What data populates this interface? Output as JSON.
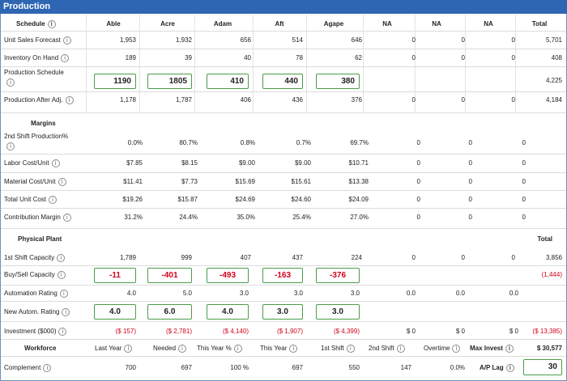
{
  "title": "Production",
  "columns": [
    "Schedule",
    "Able",
    "Acre",
    "Adam",
    "Aft",
    "Agape",
    "NA",
    "NA",
    "NA",
    "Total"
  ],
  "schedule": {
    "sales_forecast": {
      "label": "Unit Sales Forecast",
      "values": [
        "1,953",
        "1,932",
        "656",
        "514",
        "646",
        "0",
        "0",
        "0",
        "5,701"
      ]
    },
    "inventory": {
      "label": "Inventory On Hand",
      "values": [
        "189",
        "39",
        "40",
        "78",
        "62",
        "0",
        "0",
        "0",
        "408"
      ]
    },
    "production_schedule": {
      "label": "Production Schedule",
      "inputs": [
        "1190",
        "1805",
        "410",
        "440",
        "380"
      ],
      "total": "4,225"
    },
    "production_after_adj": {
      "label": "Production After Adj.",
      "values": [
        "1,178",
        "1,787",
        "406",
        "436",
        "376",
        "0",
        "0",
        "0",
        "4,184"
      ]
    }
  },
  "margins": {
    "heading": "Margins",
    "second_shift": {
      "label": "2nd Shift Production%",
      "values": [
        "0.0%",
        "80.7%",
        "0.8%",
        "0.7%",
        "69.7%",
        "0",
        "0",
        "0"
      ]
    },
    "labor_cost": {
      "label": "Labor Cost/Unit",
      "values": [
        "$7.85",
        "$8.15",
        "$9.00",
        "$9.00",
        "$10.71",
        "0",
        "0",
        "0"
      ]
    },
    "material_cost": {
      "label": "Material Cost/Unit",
      "values": [
        "$11.41",
        "$7.73",
        "$15.69",
        "$15.61",
        "$13.38",
        "0",
        "0",
        "0"
      ]
    },
    "total_unit_cost": {
      "label": "Total Unit Cost",
      "values": [
        "$19.26",
        "$15.87",
        "$24.69",
        "$24.60",
        "$24.09",
        "0",
        "0",
        "0"
      ]
    },
    "contribution_margin": {
      "label": "Contribution Margin",
      "values": [
        "31.2%",
        "24.4%",
        "35.0%",
        "25.4%",
        "27.0%",
        "0",
        "0",
        "0"
      ]
    }
  },
  "plant": {
    "heading": "Physical Plant",
    "total_heading": "Total",
    "first_shift": {
      "label": "1st Shift Capacity",
      "values": [
        "1,789",
        "999",
        "407",
        "437",
        "224",
        "0",
        "0",
        "0",
        "3,856"
      ]
    },
    "buy_sell": {
      "label": "Buy/Sell Capacity",
      "inputs": [
        "-11",
        "-401",
        "-493",
        "-163",
        "-376"
      ],
      "total": "(1,444)"
    },
    "automation": {
      "label": "Automation Rating",
      "values": [
        "4.0",
        "5.0",
        "3.0",
        "3.0",
        "3.0",
        "0.0",
        "0.0",
        "0.0"
      ]
    },
    "new_automation": {
      "label": "New Autom. Rating",
      "inputs": [
        "4.0",
        "6.0",
        "4.0",
        "3.0",
        "3.0"
      ]
    },
    "investment": {
      "label": "Investment ($000)",
      "values": [
        "($ 157)",
        "($ 2,781)",
        "($ 4,140)",
        "($ 1,907)",
        "($ 4,399)",
        "$ 0",
        "$ 0",
        "$ 0",
        "($ 13,385)"
      ]
    }
  },
  "workforce": {
    "heading": "Workforce",
    "headers": [
      "Last Year",
      "Needed",
      "This Year %",
      "This Year",
      "1st Shift",
      "2nd Shift",
      "Overtime",
      "Max Invest"
    ],
    "complement_label": "Complement",
    "complement_values": [
      "700",
      "697",
      "100 %",
      "697",
      "550",
      "147",
      "0.0%"
    ],
    "max_invest": "$ 30,577",
    "ap_lag_label": "A/P Lag",
    "ap_lag": "30"
  },
  "colors": {
    "header": "#2f66b3",
    "negative": "#d0021b",
    "input_border": "#4a9d4a"
  }
}
